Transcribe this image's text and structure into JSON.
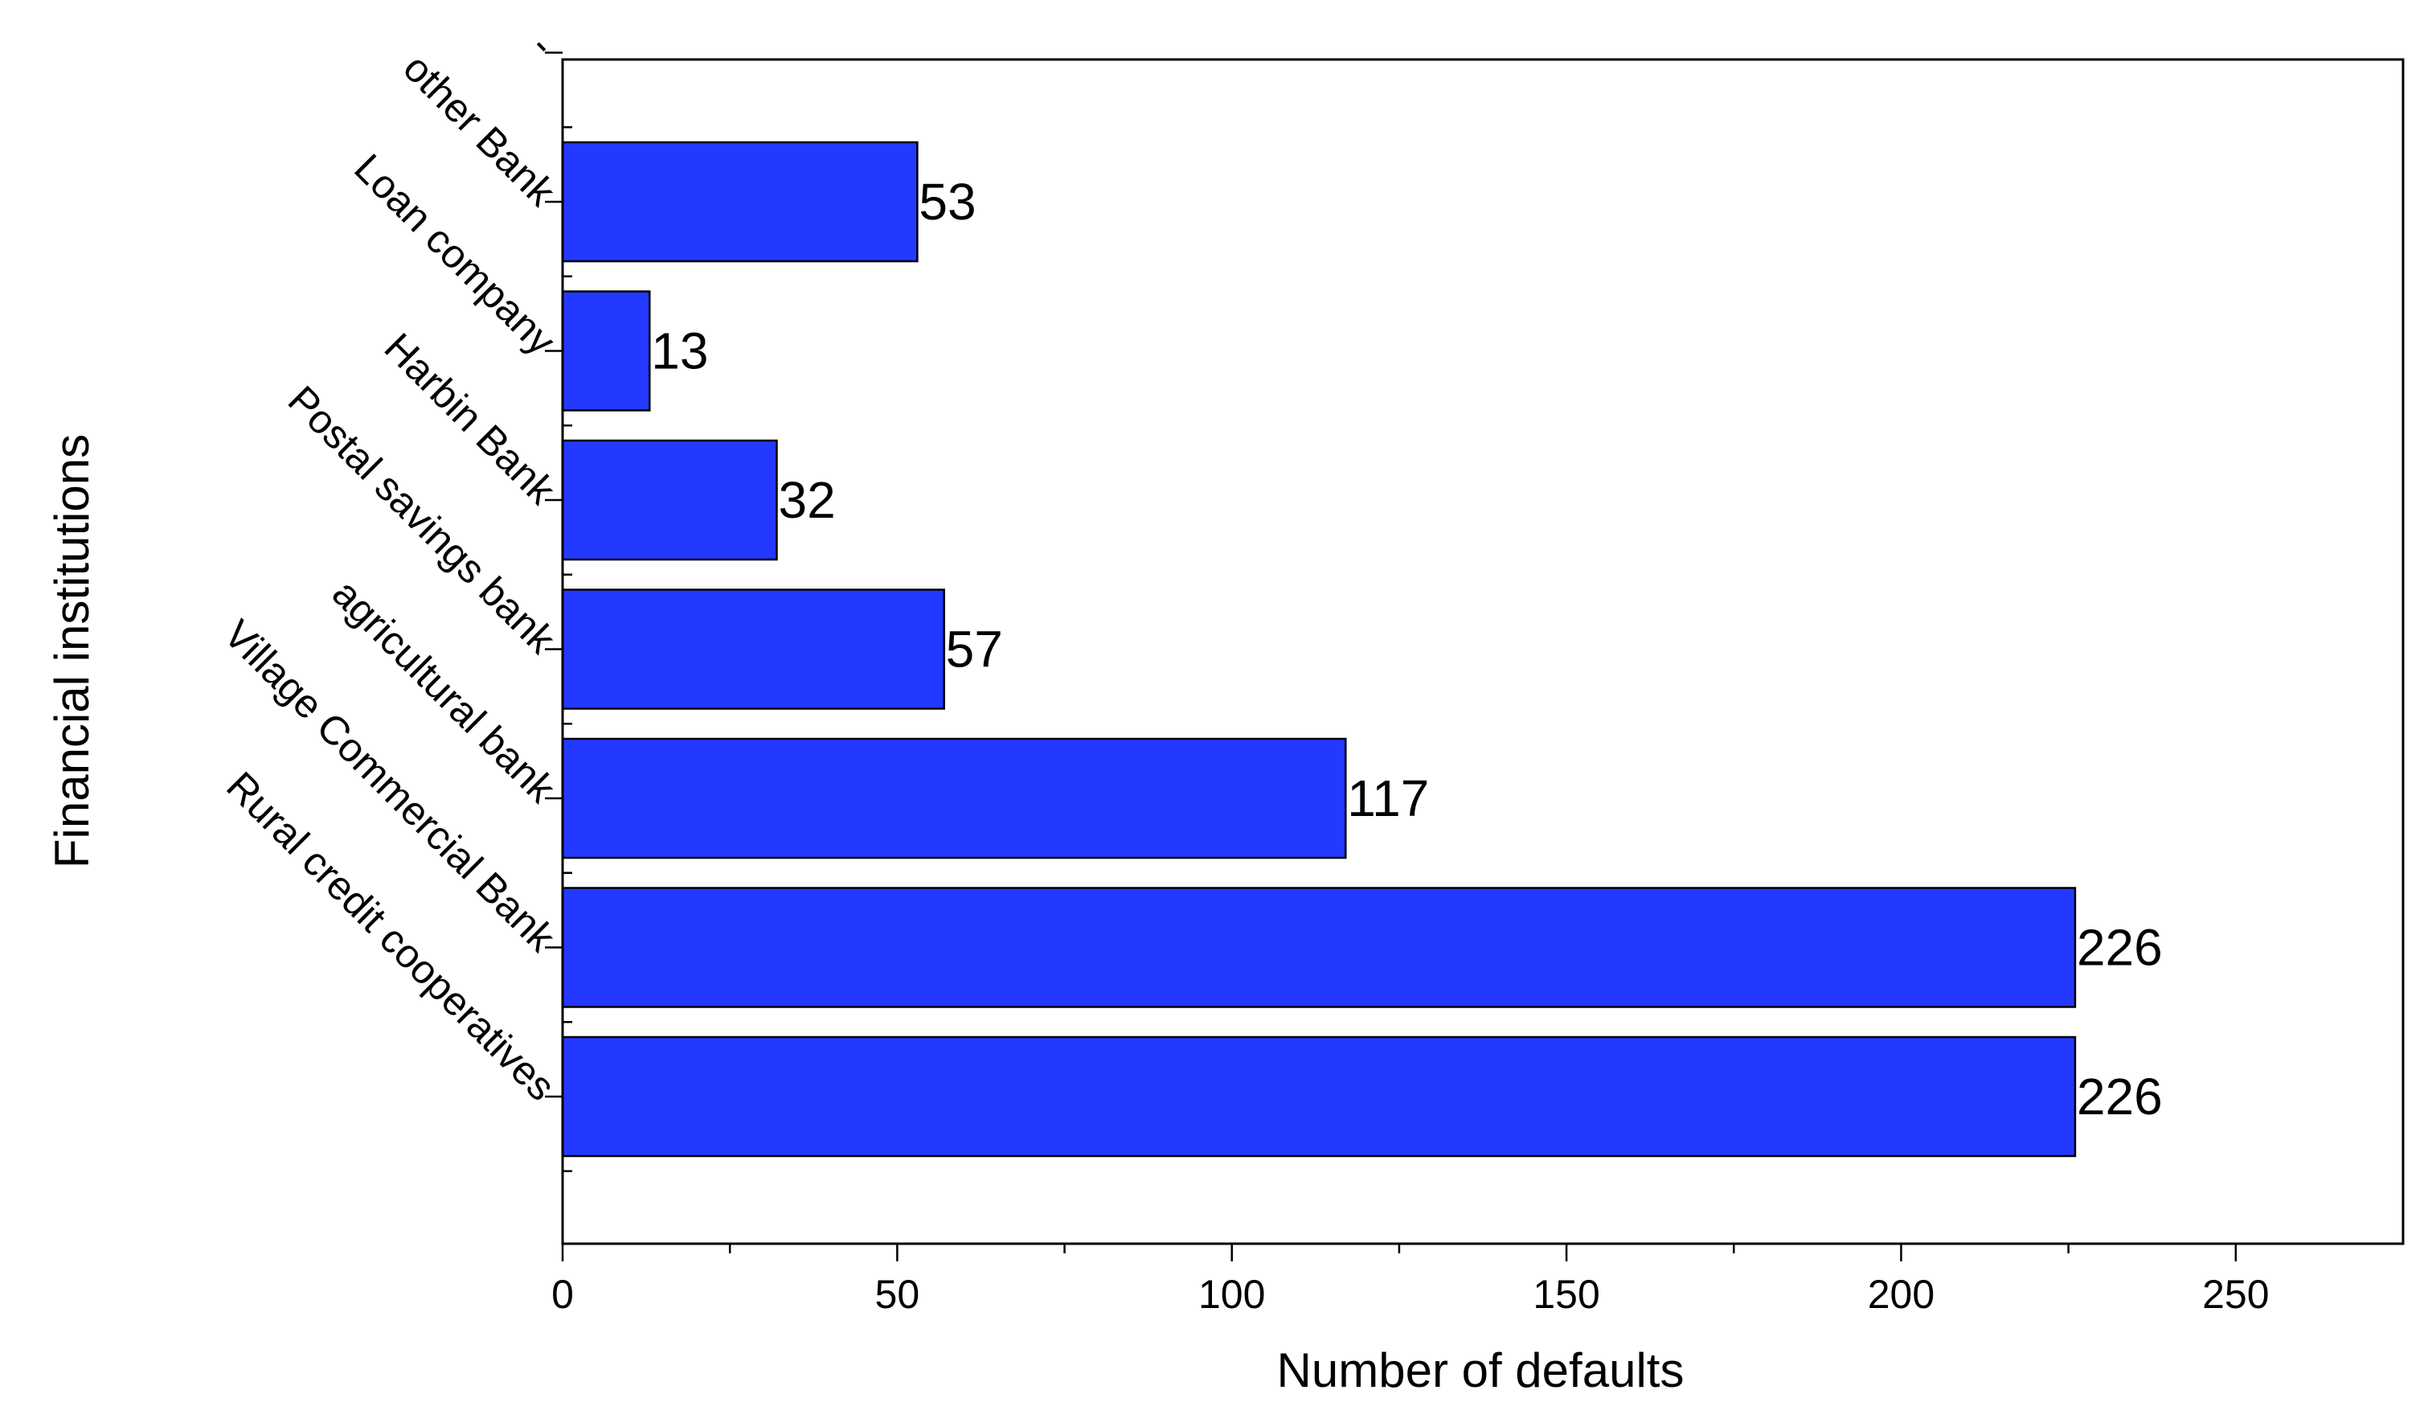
{
  "chart_data": {
    "type": "bar",
    "orientation": "horizontal",
    "categories": [
      "Rural credit cooperatives",
      "Village Commercial Bank",
      "agricultural bank",
      "Postal savings bank",
      "Harbin Bank",
      "Loan company",
      "other Bank",
      "-"
    ],
    "values": [
      226,
      226,
      117,
      57,
      32,
      13,
      53,
      null
    ],
    "data_labels": [
      "226",
      "226",
      "117",
      "57",
      "32",
      "13",
      "53",
      ""
    ],
    "xlabel": "Number of defaults",
    "ylabel": "Financial institutions",
    "xlim": [
      0,
      275
    ],
    "xticks": [
      0,
      50,
      100,
      150,
      200,
      250
    ],
    "xtick_labels": [
      "0",
      "50",
      "100",
      "150",
      "200",
      "250"
    ],
    "bar_color": "#2339FF",
    "grid": false,
    "legend": "none"
  }
}
